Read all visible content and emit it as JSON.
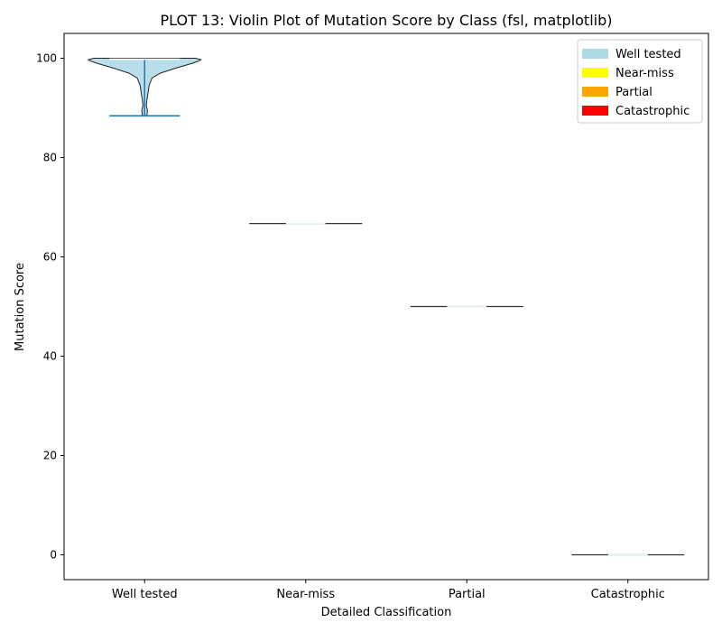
{
  "chart_data": {
    "type": "violin",
    "title": "PLOT 13: Violin Plot of Mutation Score by Class (fsl, matplotlib)",
    "xlabel": "Detailed Classification",
    "ylabel": "Mutation Score",
    "ylim": [
      -5,
      105
    ],
    "yticks": [
      0,
      20,
      40,
      60,
      80,
      100
    ],
    "categories": [
      "Well tested",
      "Near-miss",
      "Partial",
      "Catastrophic"
    ],
    "grid": false,
    "legend": {
      "placement": "top-right",
      "entries": [
        {
          "label": "Well tested",
          "color": "#add8e6"
        },
        {
          "label": "Near-miss",
          "color": "#ffff00"
        },
        {
          "label": "Partial",
          "color": "#ffa500"
        },
        {
          "label": "Catastrophic",
          "color": "#ff0000"
        }
      ]
    },
    "series": [
      {
        "category": "Well tested",
        "min": 88.4,
        "max": 100,
        "median": 100,
        "density": [
          [
            88.4,
            0.04
          ],
          [
            89.5,
            0.05
          ],
          [
            90.5,
            0.03
          ],
          [
            91.5,
            0.04
          ],
          [
            93,
            0.06
          ],
          [
            94.5,
            0.08
          ],
          [
            96,
            0.13
          ],
          [
            97,
            0.28
          ],
          [
            98,
            0.55
          ],
          [
            99,
            0.85
          ],
          [
            99.5,
            0.97
          ],
          [
            99.7,
            1.0
          ],
          [
            100,
            0.9
          ]
        ]
      },
      {
        "category": "Near-miss",
        "min": 66.7,
        "max": 66.7,
        "median": 66.7,
        "density": []
      },
      {
        "category": "Partial",
        "min": 50,
        "max": 50,
        "median": 50,
        "density": []
      },
      {
        "category": "Catastrophic",
        "min": 0,
        "max": 0,
        "median": 0,
        "density": []
      }
    ],
    "colors": {
      "violin_fill": "#add8e6",
      "violin_edge": "#222222",
      "whisker": "#1f77b4",
      "median_line": "#ffffff",
      "flat_line": "#333333"
    }
  }
}
